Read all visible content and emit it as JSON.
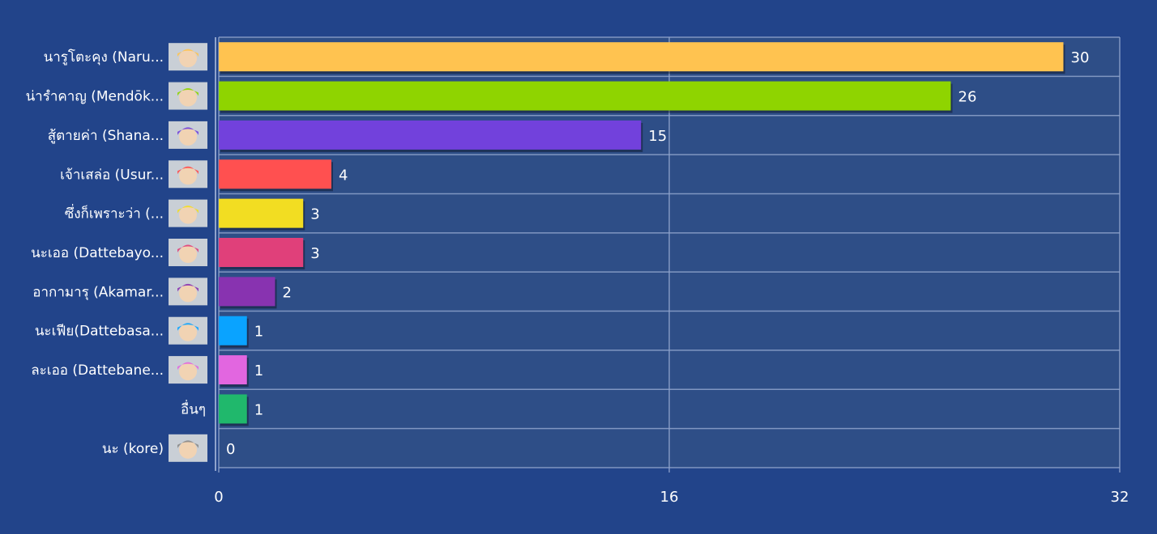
{
  "chart_data": {
    "type": "bar",
    "orientation": "horizontal",
    "categories": [
      "นารูโตะคุง (Naru...",
      "น่ารำคาญ (Mendōk...",
      "สู้ตายค่า (Shana...",
      "เจ้าเสล่อ (Usur...",
      "ซึ่งก็เพราะว่า (...",
      "นะเออ (Dattebayo...",
      "อากามารุ (Akamar...",
      "นะเฟีย(Dattebasa...",
      "ละเออ (Dattebane...",
      "อื่นๆ",
      "นะ (kore)"
    ],
    "values": [
      30,
      26,
      15,
      4,
      3,
      3,
      2,
      1,
      1,
      1,
      0
    ],
    "colors": [
      "#ffc350",
      "#8fd400",
      "#7241dc",
      "#ff5050",
      "#f2dd22",
      "#e0407a",
      "#8833b0",
      "#0aa3ff",
      "#e266e0",
      "#20b86c",
      "#888888"
    ],
    "avatars": [
      "hinata-icon",
      "shikamaru-icon",
      "sakura-icon",
      "sasuke-icon",
      "shino-icon",
      "naruto-icon",
      "kiba-icon",
      "boruto-icon",
      "kushina-icon",
      "",
      "konohamaru-icon"
    ],
    "xlim": [
      0,
      32
    ],
    "x_ticks": [
      "0",
      "16",
      "32"
    ],
    "grid": true,
    "colors_theme": {
      "background": "#22448a",
      "plot_background": "#2e4e87",
      "grid": "#8fa3cc",
      "text": "#ffffff"
    }
  }
}
